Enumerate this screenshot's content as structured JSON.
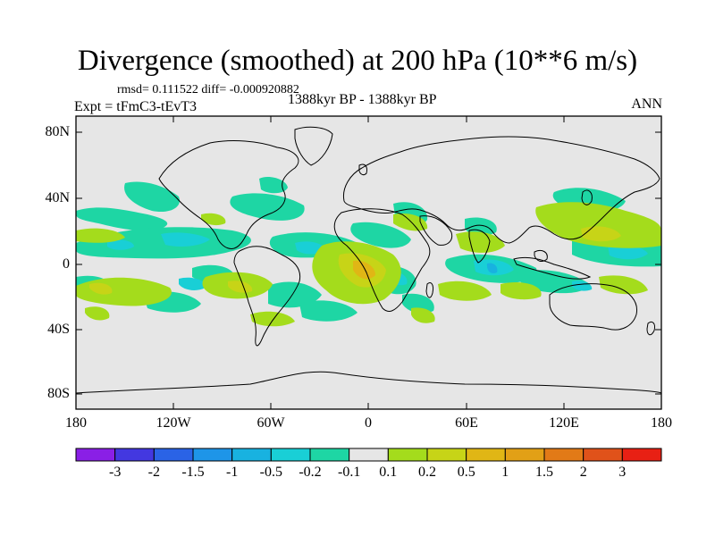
{
  "title": "Divergence (smoothed) at 200 hPa (10**6 m/s)",
  "stats": "rmsd= 0.111522 diff= -0.000920882",
  "period": "1388kyr BP - 1388kyr BP",
  "experiment": "Expt = tFmC3-tEvT3",
  "season": "ANN",
  "lat_labels": [
    "80N",
    "40N",
    "0",
    "40S",
    "80S"
  ],
  "lon_labels": [
    "180",
    "120W",
    "60W",
    "0",
    "60E",
    "120E",
    "180"
  ],
  "colorbar": {
    "colors": [
      "#8a1fe6",
      "#4338e0",
      "#2a63e6",
      "#1e95e8",
      "#18b2e0",
      "#19cfd6",
      "#1ed6a4",
      "#e6e6e6",
      "#a4dc1c",
      "#c7d417",
      "#e0b615",
      "#e2a016",
      "#e27a17",
      "#e0521a",
      "#e82014"
    ],
    "labels": [
      "-3",
      "-2",
      "-1.5",
      "-1",
      "-0.5",
      "-0.2",
      "-0.1",
      "0.1",
      "0.2",
      "0.5",
      "1",
      "1.5",
      "2",
      "3"
    ]
  },
  "map_colors": {
    "background": "#e6e6e6",
    "coast": "#000000"
  }
}
